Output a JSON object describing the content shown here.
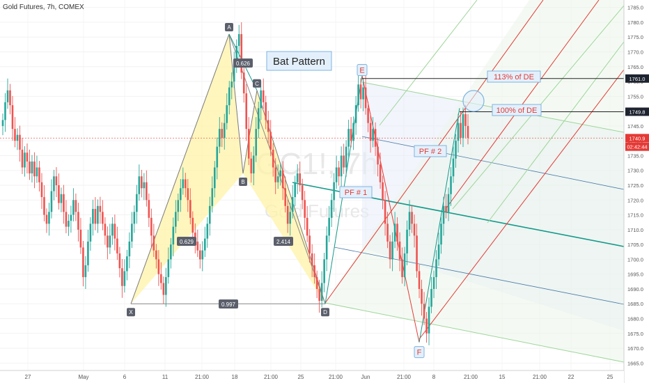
{
  "symbol_title": "Gold Futures, 7h, COMEX",
  "watermark": {
    "ticker": "GC1!, 7h",
    "name": "Gold Futures"
  },
  "pattern_title": "Bat Pattern",
  "colors": {
    "up": "#26a69a",
    "down": "#ef5350",
    "bat_fill": "#fff3a8",
    "red_line": "#e53935",
    "teal_line": "#14998a",
    "blue_line": "#4a78a8",
    "green_line": "#9ed59a",
    "label_bg": "#e3f0fb",
    "axis_text": "#555555"
  },
  "points": [
    {
      "label": "X",
      "x": 188,
      "y": 1685.0
    },
    {
      "label": "A",
      "x": 329,
      "y": 1776.0
    },
    {
      "label": "B",
      "x": 349,
      "y": 1729.0
    },
    {
      "label": "C",
      "x": 369,
      "y": 1757.0
    },
    {
      "label": "D",
      "x": 467,
      "y": 1685.0
    },
    {
      "label": "E",
      "x": 520,
      "y": 1762.0
    },
    {
      "label": "F",
      "x": 602,
      "y": 1672.0
    }
  ],
  "ratios": [
    {
      "text": "0.626"
    },
    {
      "text": "0.629"
    },
    {
      "text": "2.414"
    },
    {
      "text": "0.997"
    }
  ],
  "annotations": {
    "pf1": "PF # 1",
    "pf2": "PF # 2",
    "target113": "113% of  DE",
    "target100": "100% of DE"
  },
  "price_tags": [
    {
      "text": "1761.0",
      "value": 1761.0,
      "style": "dark"
    },
    {
      "text": "1749.8",
      "value": 1749.8,
      "style": "dark"
    },
    {
      "text": "1740.9",
      "value": 1740.9,
      "style": "red"
    },
    {
      "text": "02:42:44",
      "value": 1738.0,
      "style": "red"
    }
  ],
  "chart_data": {
    "type": "candlestick",
    "title": "Gold Futures, 7h, COMEX",
    "y_axis": {
      "min": 1662.5,
      "max": 1787.5,
      "step": 5,
      "ticks": [
        "1785.0",
        "1780.0",
        "1775.0",
        "1770.0",
        "1765.0",
        "1760.0",
        "1755.0",
        "1750.0",
        "1745.0",
        "1740.0",
        "1735.0",
        "1730.0",
        "1725.0",
        "1720.0",
        "1715.0",
        "1710.0",
        "1705.0",
        "1700.0",
        "1695.0",
        "1690.0",
        "1685.0",
        "1680.0",
        "1675.0",
        "1670.0",
        "1665.0"
      ]
    },
    "x_axis": {
      "ticks": [
        {
          "label": "27",
          "x": 40
        },
        {
          "label": "May",
          "x": 120
        },
        {
          "label": "6",
          "x": 179
        },
        {
          "label": "11",
          "x": 237
        },
        {
          "label": "21:00",
          "x": 290
        },
        {
          "label": "18",
          "x": 337
        },
        {
          "label": "21:00",
          "x": 389
        },
        {
          "label": "25",
          "x": 432
        },
        {
          "label": "21:00",
          "x": 482
        },
        {
          "label": "Jun",
          "x": 525
        },
        {
          "label": "21:00",
          "x": 580
        },
        {
          "label": "8",
          "x": 623
        },
        {
          "label": "21:00",
          "x": 676
        },
        {
          "label": "15",
          "x": 721
        },
        {
          "label": "21:00",
          "x": 775
        },
        {
          "label": "22",
          "x": 820
        },
        {
          "label": "25",
          "x": 876
        }
      ]
    },
    "last_price": 1740.9,
    "closes": [
      1747,
      1753,
      1757,
      1752,
      1744,
      1740,
      1742,
      1737,
      1731,
      1736,
      1733,
      1729,
      1733,
      1728,
      1731,
      1726,
      1721,
      1715,
      1712,
      1716,
      1723,
      1728,
      1725,
      1719,
      1722,
      1716,
      1711,
      1713,
      1715,
      1720,
      1716,
      1710,
      1704,
      1694,
      1698,
      1706,
      1712,
      1717,
      1712,
      1718,
      1716,
      1712,
      1708,
      1704,
      1708,
      1712,
      1707,
      1702,
      1697,
      1691,
      1696,
      1701,
      1706,
      1712,
      1716,
      1722,
      1728,
      1724,
      1726,
      1720,
      1714,
      1708,
      1703,
      1700,
      1695,
      1692,
      1688,
      1694,
      1700,
      1705,
      1711,
      1716,
      1720,
      1724,
      1727,
      1724,
      1720,
      1714,
      1709,
      1706,
      1703,
      1700,
      1703,
      1707,
      1712,
      1718,
      1724,
      1731,
      1738,
      1744,
      1741,
      1746,
      1752,
      1758,
      1760,
      1766,
      1772,
      1776,
      1763,
      1756,
      1744,
      1734,
      1729,
      1735,
      1744,
      1751,
      1757,
      1753,
      1747,
      1743,
      1737,
      1731,
      1726,
      1728,
      1730,
      1724,
      1718,
      1712,
      1716,
      1721,
      1726,
      1729,
      1725,
      1720,
      1714,
      1708,
      1702,
      1698,
      1694,
      1690,
      1686,
      1692,
      1700,
      1708,
      1714,
      1720,
      1726,
      1731,
      1728,
      1735,
      1731,
      1738,
      1744,
      1740,
      1746,
      1752,
      1759,
      1754,
      1758,
      1751,
      1746,
      1740,
      1744,
      1738,
      1732,
      1726,
      1720,
      1712,
      1706,
      1700,
      1706,
      1712,
      1706,
      1700,
      1694,
      1702,
      1710,
      1716,
      1712,
      1708,
      1696,
      1690,
      1685,
      1680,
      1675,
      1684,
      1690,
      1694,
      1700,
      1705,
      1712,
      1718,
      1716,
      1722,
      1728,
      1734,
      1740,
      1746,
      1741,
      1749,
      1745,
      1741
    ]
  }
}
